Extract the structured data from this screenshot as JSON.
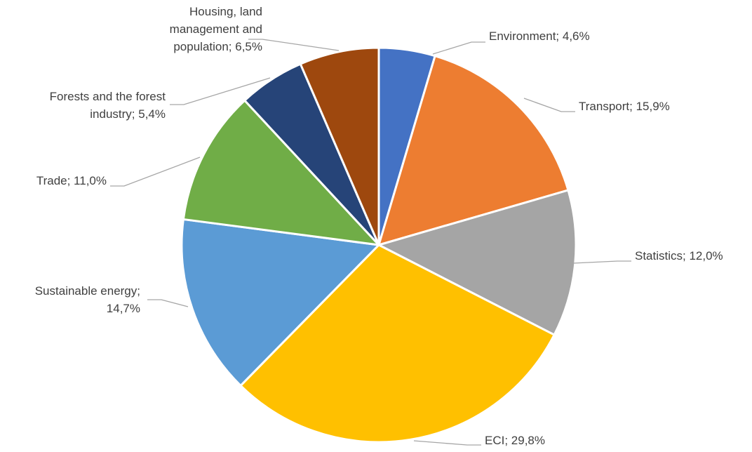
{
  "chart_data": {
    "type": "pie",
    "title": "",
    "start_angle_deg": 0,
    "direction": "clockwise",
    "slices": [
      {
        "name": "Environment",
        "value": 4.6,
        "label_lines": [
          "Environment; 4,6%"
        ],
        "color": "#4472C4"
      },
      {
        "name": "Transport",
        "value": 15.9,
        "label_lines": [
          "Transport; 15,9%"
        ],
        "color": "#ED7D31"
      },
      {
        "name": "Statistics",
        "value": 12.0,
        "label_lines": [
          "Statistics; 12,0%"
        ],
        "color": "#A5A5A5"
      },
      {
        "name": "ECI",
        "value": 29.8,
        "label_lines": [
          "ECI; 29,8%"
        ],
        "color": "#FFC000"
      },
      {
        "name": "Sustainable energy",
        "value": 14.7,
        "label_lines": [
          "Sustainable energy;",
          "14,7%"
        ],
        "color": "#5B9BD5"
      },
      {
        "name": "Trade",
        "value": 11.0,
        "label_lines": [
          "Trade; 11,0%"
        ],
        "color": "#70AD47"
      },
      {
        "name": "Forests and the forest industry",
        "value": 5.4,
        "label_lines": [
          "Forests and the forest",
          "industry; 5,4%"
        ],
        "color": "#264478"
      },
      {
        "name": "Housing, land management and population",
        "value": 6.5,
        "label_lines": [
          "Housing, land",
          "management and",
          "population; 6,5%"
        ],
        "color": "#9E480E"
      }
    ]
  }
}
